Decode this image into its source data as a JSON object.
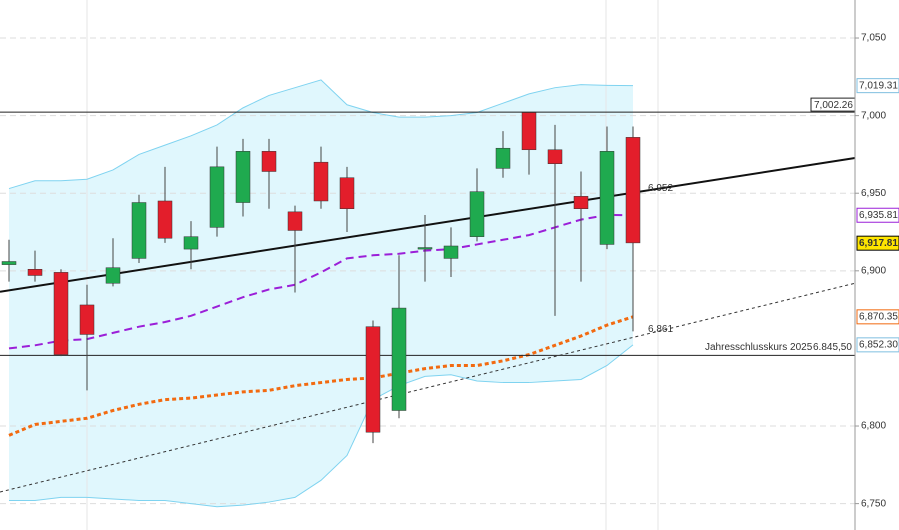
{
  "chart_data": {
    "type": "candlestick",
    "categories": [
      null,
      null,
      null,
      null,
      null,
      null,
      null,
      null,
      null,
      null,
      null,
      null,
      null,
      null,
      null,
      null,
      null,
      null,
      null,
      null,
      null,
      null,
      null,
      null,
      null
    ],
    "open": [
      6904,
      6901,
      6899,
      6878,
      6892,
      6908,
      6945,
      6914,
      6928,
      6944,
      6977,
      6938,
      6970,
      6960,
      6864,
      6810,
      6914,
      6908,
      6922,
      6966,
      7002,
      6978,
      6948,
      6917,
      6986
    ],
    "high": [
      6920,
      6913,
      6901,
      6891,
      6921,
      6949,
      6967,
      6932,
      6980,
      6985,
      6985,
      6942,
      6980,
      6967,
      6868,
      6910,
      6936,
      6928,
      6966,
      6990,
      7002,
      6994,
      6964,
      6993,
      6993
    ],
    "low": [
      6893,
      6893,
      6845,
      6823,
      6890,
      6905,
      6918,
      6901,
      6922,
      6935,
      6940,
      6886,
      6940,
      6925,
      6789,
      6805,
      6893,
      6896,
      6919,
      6960,
      6962,
      6871,
      6893,
      6914,
      6861
    ],
    "close": [
      6906,
      6897,
      6846,
      6859,
      6902,
      6944,
      6921,
      6922,
      6967,
      6977,
      6964,
      6926,
      6945,
      6940,
      6796,
      6876,
      6915,
      6916,
      6951,
      6979,
      6978,
      6969,
      6940,
      6977,
      6918
    ],
    "up_color": "#1faa4f",
    "down_color": "#e31e2b",
    "overlays": [
      {
        "kind": "band",
        "color": "#7fd3f0",
        "fill": "#e0f7fd",
        "upper": [
          6953,
          6958,
          6958,
          6959,
          6965,
          6975,
          6981,
          6987,
          6994,
          7005,
          7013,
          7018,
          7023,
          7007,
          7002,
          6999,
          6999,
          7000,
          7002,
          7008,
          7014,
          7018,
          7020,
          7019.5,
          7019.31
        ],
        "lower": [
          6752,
          6752,
          6754,
          6754,
          6753,
          6752,
          6752,
          6750,
          6748,
          6749,
          6751,
          6754,
          6765,
          6781,
          6817,
          6826,
          6832,
          6833,
          6829,
          6828,
          6828,
          6829,
          6830,
          6839,
          6852.3
        ]
      },
      {
        "kind": "dashed",
        "color": "#9b1fd8",
        "values": [
          6850,
          6852,
          6855,
          6856,
          6860,
          6864,
          6867,
          6871,
          6877,
          6883,
          6888,
          6891,
          6899,
          6908,
          6910,
          6911,
          6913,
          6914,
          6917,
          6920,
          6923,
          6928,
          6933,
          6936,
          6935.81
        ]
      },
      {
        "kind": "dotted",
        "color": "#f26a10",
        "values": [
          6794,
          6801,
          6803,
          6805,
          6810,
          6814,
          6817,
          6818,
          6820,
          6822,
          6823,
          6826,
          6828,
          6830,
          6831,
          6834,
          6837,
          6839,
          6839,
          6842,
          6846,
          6852,
          6858,
          6865,
          6870.35
        ]
      }
    ],
    "trendlines": [
      {
        "style": "solid",
        "color": "#111",
        "values": [
          6886.5,
          6972.7
        ],
        "label": "6.952",
        "label_value": 6952
      },
      {
        "style": "dashed",
        "color": "#333",
        "values": [
          6757.5,
          6892
        ],
        "label": "6.861",
        "label_value": 6861
      }
    ],
    "hlines": [
      {
        "value": 7002.26,
        "label": "7,002.26"
      },
      {
        "value": 6845.5,
        "text": "Jahresschlusskurs 2025",
        "label": "6.845,50"
      }
    ],
    "price_tags": [
      {
        "value": 7019.31,
        "label": "7,019.31",
        "color": "#7fbfe0",
        "bg": "#fff"
      },
      {
        "value": 6935.81,
        "label": "6,935.81",
        "color": "#9b1fd8",
        "bg": "#fff"
      },
      {
        "value": 6917.81,
        "label": "6,917.81",
        "color": "#000",
        "bg": "#ffe600"
      },
      {
        "value": 6870.35,
        "label": "6,870.35",
        "color": "#f26a10",
        "bg": "#fff"
      },
      {
        "value": 6852.3,
        "label": "6,852.30",
        "color": "#7fbfe0",
        "bg": "#fff"
      }
    ],
    "ylim": [
      6733,
      7074.5
    ],
    "yticks": [
      {
        "value": 6750,
        "label": "6,750"
      },
      {
        "value": 6800,
        "label": "6,800"
      },
      {
        "value": 6900,
        "label": "6,900"
      },
      {
        "value": 6950,
        "label": "6,950"
      },
      {
        "value": 7000,
        "label": "7,000"
      },
      {
        "value": 7050,
        "label": "7,050"
      }
    ],
    "grid": true
  }
}
